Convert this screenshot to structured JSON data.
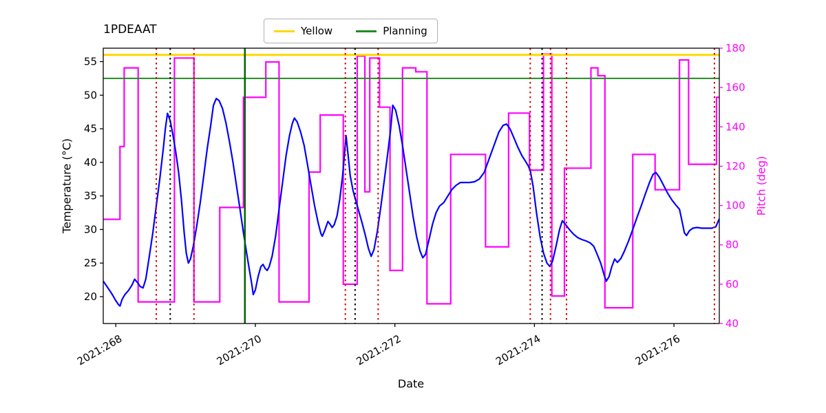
{
  "title": "1PDEAAT",
  "legend": {
    "items": [
      {
        "label": "Yellow",
        "color": "#ffd700"
      },
      {
        "label": "Planning",
        "color": "#228b22"
      }
    ]
  },
  "axes": {
    "x_label": "Date",
    "y_left_label": "Temperature (°C)",
    "y_right_label": "Pitch (deg)",
    "x_ticks": [
      {
        "value": 268,
        "label": "2021:268"
      },
      {
        "value": 270,
        "label": "2021:270"
      },
      {
        "value": 272,
        "label": "2021:272"
      },
      {
        "value": 274,
        "label": "2021:274"
      },
      {
        "value": 276,
        "label": "2021:276"
      }
    ],
    "y_left_ticks": [
      20,
      25,
      30,
      35,
      40,
      45,
      50,
      55
    ],
    "y_right_ticks": [
      40,
      60,
      80,
      100,
      120,
      140,
      160,
      180
    ]
  },
  "colors": {
    "temperature": "#0000ff",
    "pitch": "#ff00ff",
    "yellow_limit": "#ffd700",
    "planning_limit": "#228b22",
    "green_event": "#006400",
    "red_event": "#d40000",
    "black_event": "#000000",
    "right_axis_text": "#ff00ff"
  },
  "chart_data": {
    "type": "line",
    "title": "1PDEAAT",
    "xlabel": "Date",
    "ylabel_left": "Temperature (°C)",
    "ylabel_right": "Pitch (deg)",
    "x_range": [
      267.82,
      276.65
    ],
    "temp_range": [
      16,
      57
    ],
    "pitch_range": [
      40,
      180
    ],
    "grid": false,
    "legend_position": "upper center",
    "series": [
      {
        "name": "temperature",
        "axis": "left",
        "style": "line",
        "color": "#0000ff",
        "points": [
          [
            267.82,
            22.3
          ],
          [
            267.86,
            21.7
          ],
          [
            267.9,
            21.1
          ],
          [
            267.95,
            20.3
          ],
          [
            268.0,
            19.4
          ],
          [
            268.04,
            18.8
          ],
          [
            268.06,
            18.6
          ],
          [
            268.09,
            19.6
          ],
          [
            268.13,
            20.3
          ],
          [
            268.18,
            20.9
          ],
          [
            268.23,
            21.7
          ],
          [
            268.27,
            22.6
          ],
          [
            268.31,
            22.1
          ],
          [
            268.35,
            21.5
          ],
          [
            268.39,
            21.3
          ],
          [
            268.43,
            22.6
          ],
          [
            268.48,
            26.0
          ],
          [
            268.53,
            29.5
          ],
          [
            268.58,
            33.5
          ],
          [
            268.63,
            37.5
          ],
          [
            268.68,
            42.0
          ],
          [
            268.71,
            45.0
          ],
          [
            268.74,
            47.3
          ],
          [
            268.78,
            46.2
          ],
          [
            268.82,
            44.0
          ],
          [
            268.86,
            41.5
          ],
          [
            268.9,
            38.5
          ],
          [
            268.94,
            34.5
          ],
          [
            268.98,
            29.5
          ],
          [
            269.01,
            26.5
          ],
          [
            269.04,
            25.0
          ],
          [
            269.07,
            25.6
          ],
          [
            269.11,
            27.5
          ],
          [
            269.16,
            30.5
          ],
          [
            269.21,
            34.0
          ],
          [
            269.26,
            38.0
          ],
          [
            269.31,
            42.0
          ],
          [
            269.36,
            45.5
          ],
          [
            269.4,
            48.5
          ],
          [
            269.44,
            49.5
          ],
          [
            269.48,
            49.2
          ],
          [
            269.53,
            48.0
          ],
          [
            269.58,
            45.8
          ],
          [
            269.63,
            43.0
          ],
          [
            269.68,
            40.0
          ],
          [
            269.73,
            36.5
          ],
          [
            269.78,
            33.0
          ],
          [
            269.83,
            29.5
          ],
          [
            269.87,
            26.8
          ],
          [
            269.91,
            24.3
          ],
          [
            269.95,
            21.8
          ],
          [
            269.97,
            20.3
          ],
          [
            270.0,
            21.0
          ],
          [
            270.04,
            23.0
          ],
          [
            270.08,
            24.5
          ],
          [
            270.11,
            24.8
          ],
          [
            270.14,
            24.2
          ],
          [
            270.17,
            23.9
          ],
          [
            270.2,
            24.5
          ],
          [
            270.24,
            26.0
          ],
          [
            270.29,
            29.0
          ],
          [
            270.34,
            33.0
          ],
          [
            270.39,
            37.0
          ],
          [
            270.44,
            41.0
          ],
          [
            270.49,
            44.0
          ],
          [
            270.53,
            45.8
          ],
          [
            270.56,
            46.6
          ],
          [
            270.6,
            46.0
          ],
          [
            270.65,
            44.5
          ],
          [
            270.7,
            42.5
          ],
          [
            270.75,
            39.5
          ],
          [
            270.8,
            36.5
          ],
          [
            270.85,
            33.5
          ],
          [
            270.9,
            31.0
          ],
          [
            270.94,
            29.4
          ],
          [
            270.96,
            29.0
          ],
          [
            271.0,
            30.0
          ],
          [
            271.04,
            31.2
          ],
          [
            271.07,
            30.8
          ],
          [
            271.1,
            30.3
          ],
          [
            271.13,
            30.7
          ],
          [
            271.17,
            32.0
          ],
          [
            271.21,
            34.5
          ],
          [
            271.25,
            38.0
          ],
          [
            271.28,
            41.5
          ],
          [
            271.3,
            44.0
          ],
          [
            271.33,
            41.0
          ],
          [
            271.36,
            38.0
          ],
          [
            271.4,
            35.8
          ],
          [
            271.44,
            34.3
          ],
          [
            271.48,
            32.8
          ],
          [
            271.53,
            31.0
          ],
          [
            271.58,
            29.0
          ],
          [
            271.62,
            27.2
          ],
          [
            271.66,
            26.0
          ],
          [
            271.7,
            27.0
          ],
          [
            271.75,
            29.8
          ],
          [
            271.8,
            33.5
          ],
          [
            271.85,
            37.5
          ],
          [
            271.9,
            41.5
          ],
          [
            271.94,
            45.0
          ],
          [
            271.97,
            48.5
          ],
          [
            272.01,
            47.8
          ],
          [
            272.06,
            45.5
          ],
          [
            272.11,
            42.5
          ],
          [
            272.16,
            39.0
          ],
          [
            272.21,
            35.5
          ],
          [
            272.26,
            32.0
          ],
          [
            272.31,
            29.0
          ],
          [
            272.36,
            26.8
          ],
          [
            272.4,
            25.8
          ],
          [
            272.44,
            26.3
          ],
          [
            272.49,
            28.5
          ],
          [
            272.54,
            30.8
          ],
          [
            272.59,
            32.5
          ],
          [
            272.64,
            33.5
          ],
          [
            272.7,
            34.0
          ],
          [
            272.76,
            35.0
          ],
          [
            272.82,
            36.0
          ],
          [
            272.88,
            36.6
          ],
          [
            272.94,
            37.0
          ],
          [
            273.0,
            37.0
          ],
          [
            273.07,
            37.0
          ],
          [
            273.14,
            37.1
          ],
          [
            273.21,
            37.5
          ],
          [
            273.28,
            38.5
          ],
          [
            273.35,
            40.5
          ],
          [
            273.42,
            42.5
          ],
          [
            273.49,
            44.5
          ],
          [
            273.55,
            45.5
          ],
          [
            273.6,
            45.7
          ],
          [
            273.65,
            45.0
          ],
          [
            273.7,
            43.8
          ],
          [
            273.76,
            42.3
          ],
          [
            273.82,
            41.0
          ],
          [
            273.87,
            40.2
          ],
          [
            273.91,
            39.5
          ],
          [
            273.94,
            38.8
          ],
          [
            273.98,
            36.5
          ],
          [
            274.03,
            32.5
          ],
          [
            274.08,
            29.0
          ],
          [
            274.13,
            26.5
          ],
          [
            274.18,
            25.0
          ],
          [
            274.22,
            24.5
          ],
          [
            274.26,
            25.3
          ],
          [
            274.31,
            27.5
          ],
          [
            274.36,
            30.0
          ],
          [
            274.4,
            31.3
          ],
          [
            274.45,
            30.7
          ],
          [
            274.5,
            30.0
          ],
          [
            274.56,
            29.3
          ],
          [
            274.62,
            28.8
          ],
          [
            274.68,
            28.5
          ],
          [
            274.74,
            28.3
          ],
          [
            274.8,
            28.0
          ],
          [
            274.85,
            27.5
          ],
          [
            274.9,
            26.3
          ],
          [
            274.95,
            25.0
          ],
          [
            275.0,
            23.2
          ],
          [
            275.03,
            22.3
          ],
          [
            275.07,
            23.0
          ],
          [
            275.11,
            24.5
          ],
          [
            275.15,
            25.6
          ],
          [
            275.19,
            25.1
          ],
          [
            275.24,
            25.7
          ],
          [
            275.29,
            26.8
          ],
          [
            275.35,
            28.3
          ],
          [
            275.41,
            30.0
          ],
          [
            275.47,
            31.8
          ],
          [
            275.53,
            33.5
          ],
          [
            275.59,
            35.3
          ],
          [
            275.65,
            37.0
          ],
          [
            275.7,
            38.2
          ],
          [
            275.74,
            38.5
          ],
          [
            275.79,
            37.8
          ],
          [
            275.85,
            36.6
          ],
          [
            275.91,
            35.4
          ],
          [
            275.97,
            34.4
          ],
          [
            276.03,
            33.6
          ],
          [
            276.08,
            33.0
          ],
          [
            276.11,
            31.5
          ],
          [
            276.15,
            29.5
          ],
          [
            276.18,
            29.1
          ],
          [
            276.22,
            29.8
          ],
          [
            276.27,
            30.2
          ],
          [
            276.33,
            30.3
          ],
          [
            276.4,
            30.2
          ],
          [
            276.47,
            30.2
          ],
          [
            276.54,
            30.2
          ],
          [
            276.6,
            30.4
          ],
          [
            276.65,
            31.6
          ]
        ]
      },
      {
        "name": "pitch",
        "axis": "right",
        "style": "step",
        "color": "#ff00ff",
        "points": [
          [
            267.82,
            93
          ],
          [
            268.06,
            130
          ],
          [
            268.12,
            170
          ],
          [
            268.32,
            51
          ],
          [
            268.84,
            175
          ],
          [
            269.12,
            51
          ],
          [
            269.49,
            99
          ],
          [
            269.83,
            155
          ],
          [
            270.15,
            173
          ],
          [
            270.34,
            51
          ],
          [
            270.77,
            117
          ],
          [
            270.93,
            146
          ],
          [
            271.26,
            60
          ],
          [
            271.46,
            176
          ],
          [
            271.57,
            107
          ],
          [
            271.64,
            175
          ],
          [
            271.78,
            150
          ],
          [
            271.93,
            67
          ],
          [
            272.11,
            170
          ],
          [
            272.3,
            168
          ],
          [
            272.46,
            50
          ],
          [
            272.8,
            126
          ],
          [
            273.3,
            79
          ],
          [
            273.63,
            147
          ],
          [
            273.93,
            118
          ],
          [
            274.13,
            177
          ],
          [
            274.25,
            54
          ],
          [
            274.43,
            119
          ],
          [
            274.81,
            170
          ],
          [
            274.91,
            166
          ],
          [
            275.01,
            48
          ],
          [
            275.41,
            126
          ],
          [
            275.73,
            108
          ],
          [
            276.08,
            174
          ],
          [
            276.21,
            121
          ],
          [
            276.61,
            155
          ],
          [
            276.65,
            155
          ]
        ]
      }
    ],
    "h_lines": [
      {
        "name": "yellow-limit",
        "label": "Yellow",
        "value": 56.0,
        "axis": "left",
        "color": "#ffd700",
        "width": 3
      },
      {
        "name": "planning-limit",
        "label": "Planning",
        "value": 52.5,
        "axis": "left",
        "color": "#228b22",
        "width": 2
      }
    ],
    "v_lines": [
      {
        "x": 268.58,
        "color": "#d40000",
        "dash": "dotted"
      },
      {
        "x": 268.78,
        "color": "#000000",
        "dash": "dotted"
      },
      {
        "x": 269.12,
        "color": "#d40000",
        "dash": "dotted"
      },
      {
        "x": 269.85,
        "color": "#006400",
        "dash": "solid"
      },
      {
        "x": 271.29,
        "color": "#d40000",
        "dash": "dotted"
      },
      {
        "x": 271.43,
        "color": "#000000",
        "dash": "dotted"
      },
      {
        "x": 271.76,
        "color": "#d40000",
        "dash": "dotted"
      },
      {
        "x": 273.94,
        "color": "#d40000",
        "dash": "dotted"
      },
      {
        "x": 274.11,
        "color": "#000000",
        "dash": "dotted"
      },
      {
        "x": 274.23,
        "color": "#d40000",
        "dash": "dotted"
      },
      {
        "x": 274.46,
        "color": "#d40000",
        "dash": "dotted"
      },
      {
        "x": 276.58,
        "color": "#d40000",
        "dash": "dotted"
      }
    ]
  }
}
